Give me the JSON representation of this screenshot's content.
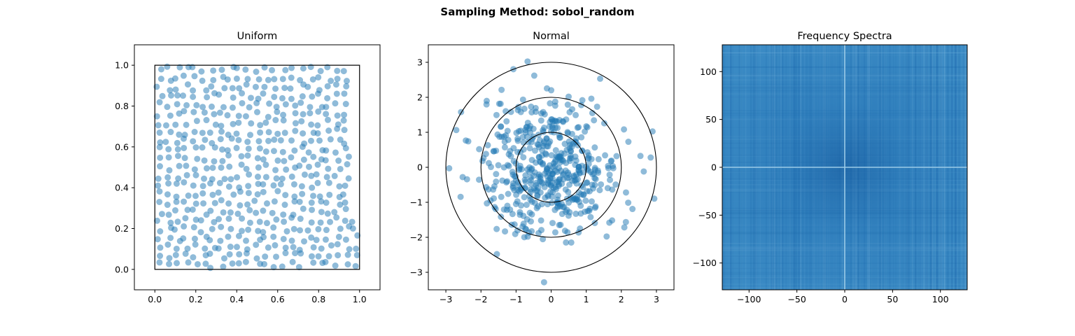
{
  "figure": {
    "suptitle": "Sampling Method: sobol_random"
  },
  "chart_data": [
    {
      "type": "scatter",
      "title": "Uniform",
      "xlabel": "",
      "ylabel": "",
      "xlim": [
        -0.1,
        1.1
      ],
      "ylim": [
        -0.1,
        1.1
      ],
      "xticks": [
        "0.0",
        "0.2",
        "0.4",
        "0.6",
        "0.8",
        "1.0"
      ],
      "yticks": [
        "0.0",
        "0.2",
        "0.4",
        "0.6",
        "0.8",
        "1.0"
      ],
      "point_count": 512,
      "point_color": "#1f77b4",
      "point_alpha": 0.5,
      "boundary_square": [
        0,
        0,
        1,
        1
      ],
      "boundary_color": "#000000"
    },
    {
      "type": "scatter",
      "title": "Normal",
      "xlabel": "",
      "ylabel": "",
      "xlim": [
        -3.5,
        3.5
      ],
      "ylim": [
        -3.5,
        3.5
      ],
      "xticks": [
        "−3",
        "−2",
        "−1",
        "0",
        "1",
        "2",
        "3"
      ],
      "yticks": [
        "−3",
        "−2",
        "−1",
        "0",
        "1",
        "2",
        "3"
      ],
      "point_count": 512,
      "point_color": "#1f77b4",
      "point_alpha": 0.5,
      "circle_radii": [
        1,
        2,
        3
      ],
      "circle_color": "#000000"
    },
    {
      "type": "heatmap",
      "title": "Frequency Spectra",
      "xlabel": "",
      "ylabel": "",
      "xlim": [
        -128,
        128
      ],
      "ylim": [
        -128,
        128
      ],
      "xticks": [
        "−100",
        "−50",
        "0",
        "50",
        "100"
      ],
      "yticks": [
        "−100",
        "−50",
        "0",
        "50",
        "100"
      ],
      "colormap": "Blues",
      "base_color": "#3a8ac4",
      "dark_color": "#1561a8",
      "light_color": "#79b6de"
    }
  ]
}
